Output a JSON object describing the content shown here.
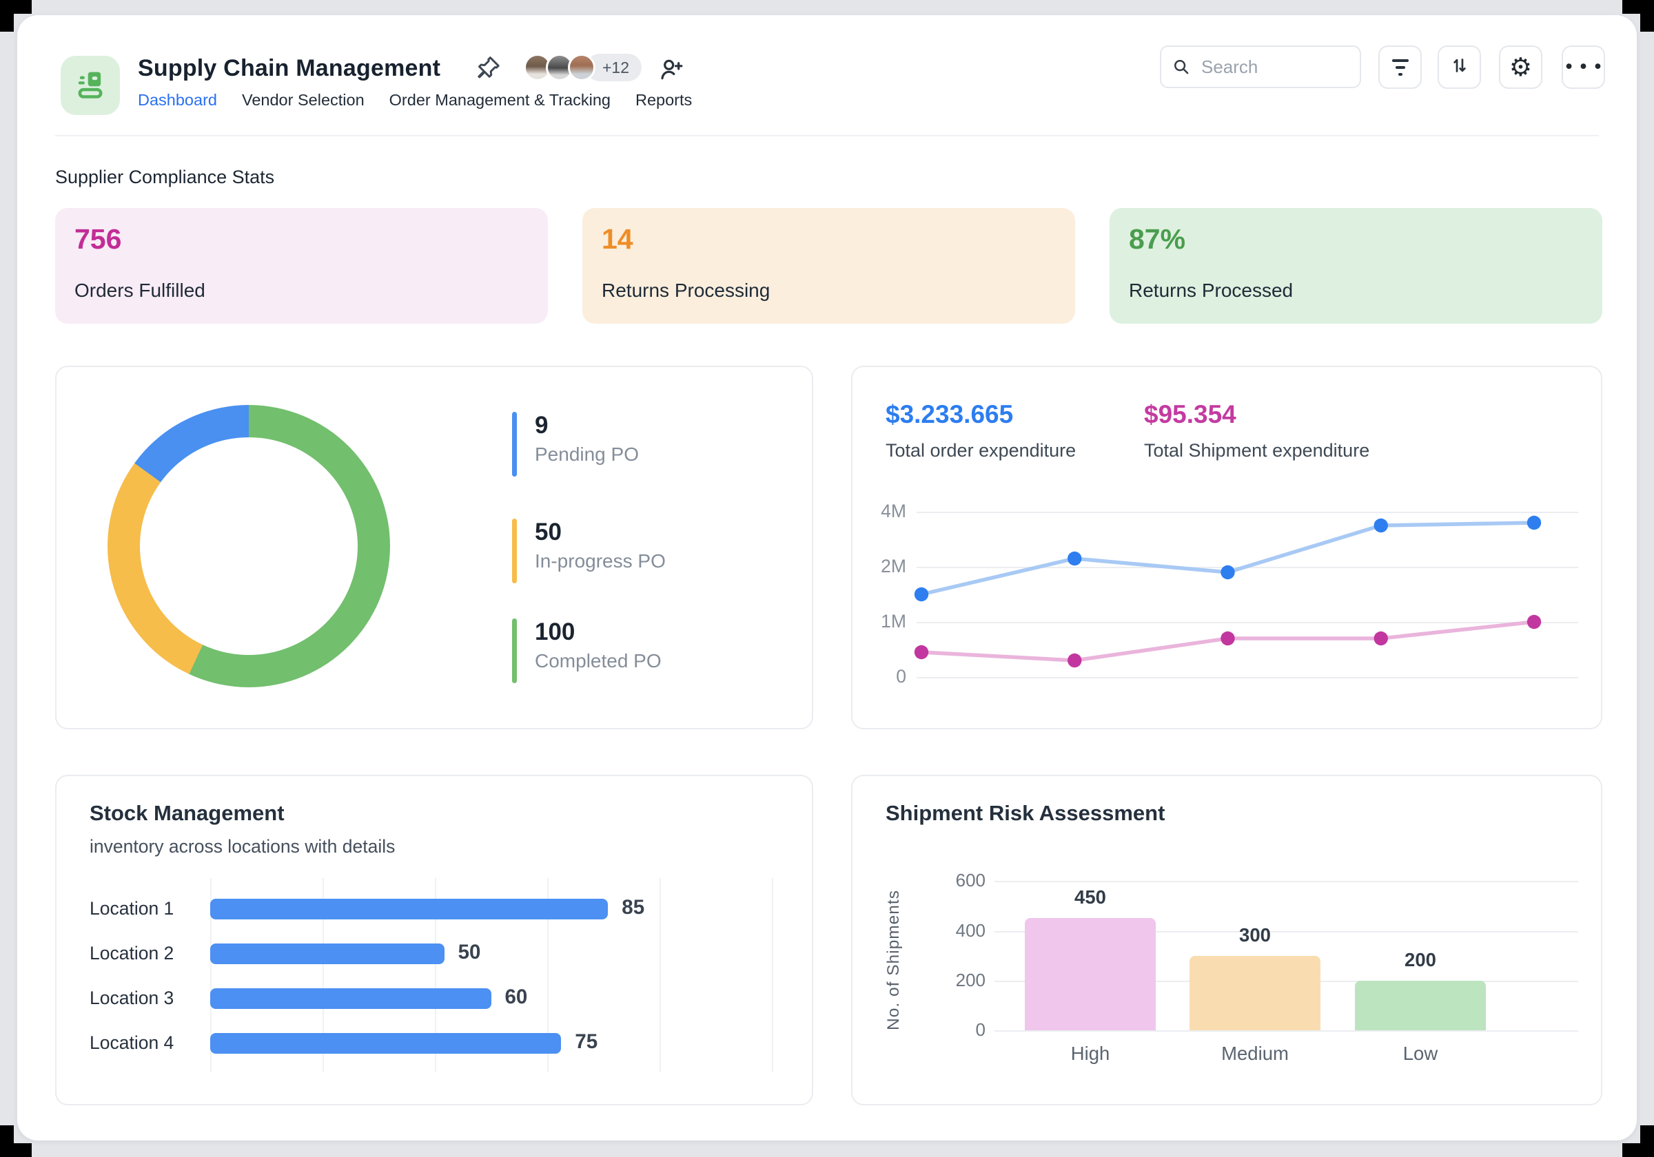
{
  "app": {
    "title": "Supply Chain Management",
    "nav": {
      "items": [
        "Dashboard",
        "Vendor Selection",
        "Order Management & Tracking",
        "Reports"
      ],
      "active": "Dashboard"
    },
    "avatars_overflow": "+12",
    "search": {
      "placeholder": "Search"
    },
    "toolbar_icons": [
      "filter-icon",
      "sort-icon",
      "settings-gear-icon",
      "more-ellipsis-icon"
    ]
  },
  "stats": {
    "section_title": "Supplier Compliance Stats",
    "cards": [
      {
        "value": "756",
        "label": "Orders Fulfilled",
        "bg": "#f8ecf6",
        "accent": "#c22d96"
      },
      {
        "value": "14",
        "label": "Returns Processing",
        "bg": "#fbeedd",
        "accent": "#ee8d26"
      },
      {
        "value": "87%",
        "label": "Returns Processed",
        "bg": "#def0df",
        "accent": "#4a9d4e"
      }
    ]
  },
  "chart_data": [
    {
      "id": "po_status_donut",
      "type": "pie",
      "subtype": "donut",
      "legend_position": "right",
      "segments": [
        {
          "label": "Completed PO",
          "value": 100,
          "color": "#72bf6e",
          "display_sweep_deg": 205
        },
        {
          "label": "In-progress PO",
          "value": 50,
          "color": "#f6bd4b",
          "display_sweep_deg": 101
        },
        {
          "label": "Pending PO",
          "value": 9,
          "color": "#4990f1",
          "display_sweep_deg": 54
        }
      ],
      "legend": [
        {
          "value": "9",
          "label": "Pending PO",
          "color": "#4990f1"
        },
        {
          "value": "50",
          "label": "In-progress PO",
          "color": "#f6bd4b"
        },
        {
          "value": "100",
          "label": "Completed PO",
          "color": "#72bf6e"
        }
      ]
    },
    {
      "id": "expenditure_lines",
      "type": "line",
      "totals": [
        {
          "value": "$3.233.665",
          "label": "Total order expenditure",
          "color": "#2c7df0"
        },
        {
          "value": "$95.354",
          "label": "Total Shipment expenditure",
          "color": "#c33ba1"
        }
      ],
      "y_ticks": [
        "4M",
        "2M",
        "1M",
        "0"
      ],
      "y_tick_values_m": [
        4,
        2,
        1,
        0
      ],
      "grid": true,
      "x_points": 5,
      "series": [
        {
          "name": "Total order expenditure",
          "dot_color": "#2e7ef0",
          "line_color": "#a8c9f4",
          "values_m": [
            1.5,
            2.3,
            1.9,
            3.5,
            3.6
          ]
        },
        {
          "name": "Total Shipment expenditure",
          "dot_color": "#c2379f",
          "line_color": "#eab4dc",
          "values_m": [
            0.45,
            0.3,
            0.7,
            0.7,
            1.0
          ]
        }
      ],
      "note": "y ticks 0,1M,2M,4M rendered equally spaced"
    },
    {
      "id": "stock_management",
      "type": "bar",
      "orientation": "horizontal",
      "title": "Stock Management",
      "subtitle": "inventory across locations with details",
      "categories": [
        "Location 1",
        "Location 2",
        "Location 3",
        "Location 4"
      ],
      "values": [
        85,
        50,
        60,
        75
      ],
      "xlim": [
        0,
        120
      ],
      "bar_color": "#4b90f2",
      "grid": true
    },
    {
      "id": "shipment_risk",
      "type": "bar",
      "orientation": "vertical",
      "title": "Shipment Risk Assessment",
      "ylabel": "No. of Shipments",
      "categories": [
        "High",
        "Medium",
        "Low"
      ],
      "values": [
        450,
        300,
        200
      ],
      "colors": [
        "#f0c6ec",
        "#f9ddb0",
        "#bbe4bf"
      ],
      "y_ticks": [
        600,
        400,
        200,
        0
      ],
      "ylim": [
        0,
        600
      ],
      "grid": true
    }
  ]
}
